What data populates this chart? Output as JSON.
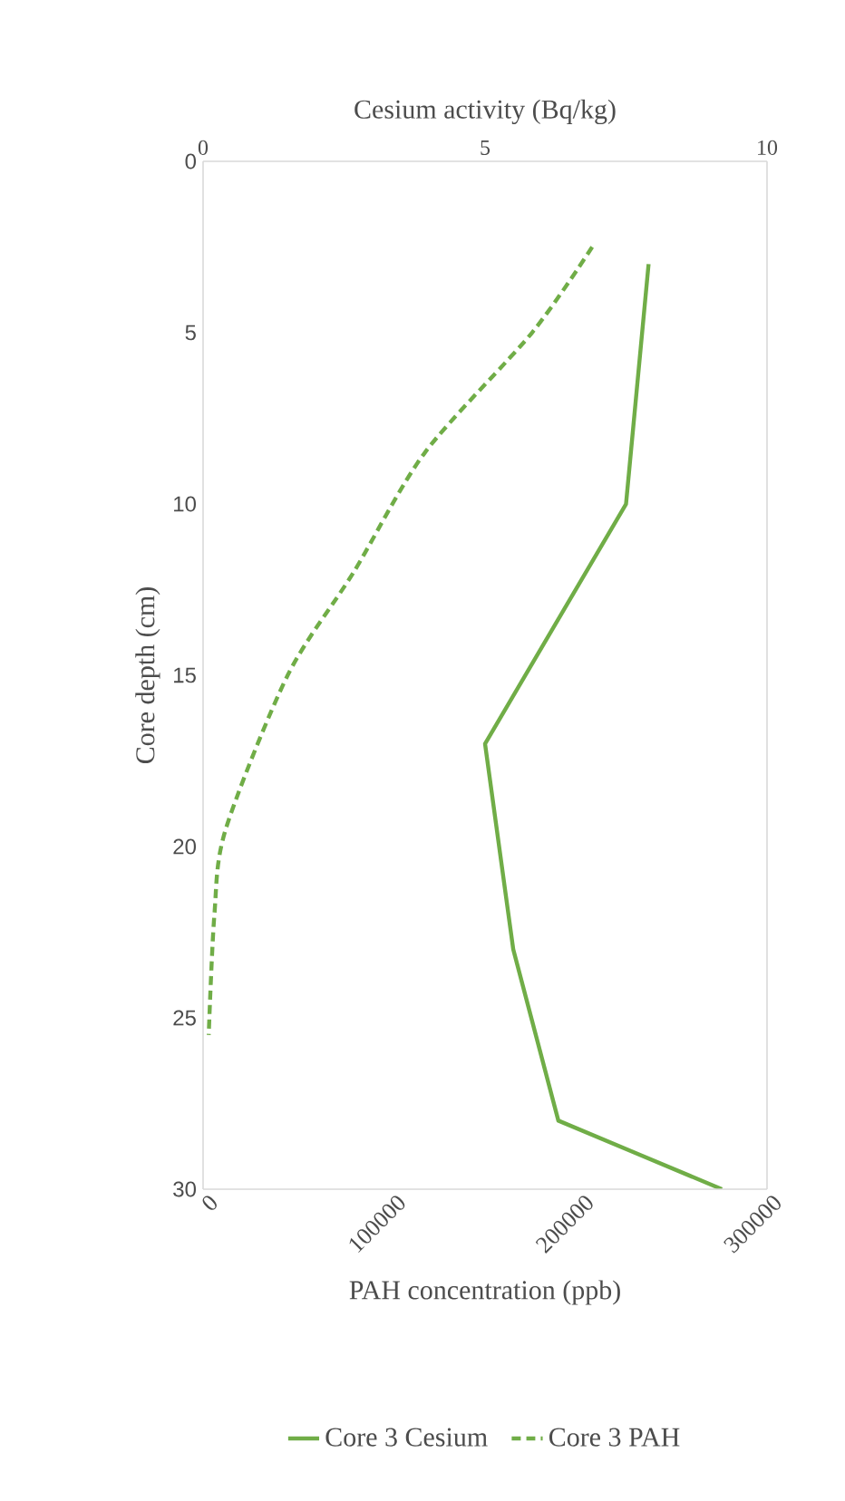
{
  "chart_data": {
    "type": "line",
    "xlabel": "PAH concentration (ppb)",
    "x2label": "Cesium activity (Bq/kg)",
    "ylabel": "Core depth (cm)",
    "xlim": [
      0,
      300000
    ],
    "xticks": [
      0,
      100000,
      200000,
      300000
    ],
    "x2lim": [
      0,
      10
    ],
    "x2ticks": [
      0,
      5,
      10
    ],
    "ylim": [
      30,
      0
    ],
    "yticks": [
      0,
      5,
      10,
      15,
      20,
      25,
      30
    ],
    "series": [
      {
        "name": "Core 3 Cesium",
        "color": "#70ad47",
        "axis": "x2",
        "line_style": "solid",
        "x": [
          7.9,
          7.5,
          5.0,
          5.5,
          6.3,
          9.2
        ],
        "values": [
          3,
          10,
          17,
          23,
          28,
          30
        ]
      },
      {
        "name": "Core 3 PAH",
        "color": "#70ad47",
        "line_style": "dashed",
        "x": [
          207000,
          175000,
          118000,
          80000,
          45000,
          12000,
          6000,
          3000
        ],
        "values": [
          2.5,
          5,
          8.5,
          12,
          15,
          19.5,
          22,
          25.5
        ]
      }
    ],
    "legend": "bottom",
    "grid": false
  }
}
